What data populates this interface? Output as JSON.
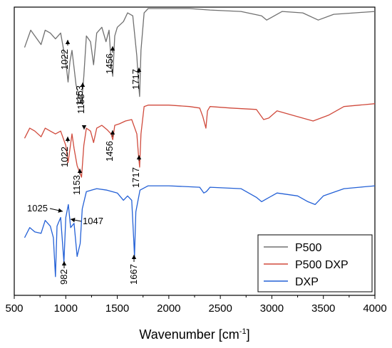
{
  "chart_data": {
    "type": "line",
    "xlabel": "Wavenumber [cm",
    "xlabel_sup": "-1",
    "xlabel_end": "]",
    "xlim": [
      500,
      4000
    ],
    "ylim": [
      0,
      1
    ],
    "xticks": [
      500,
      1000,
      1500,
      2000,
      2500,
      3000,
      3500,
      4000
    ],
    "yticks_visible": false,
    "grid": false,
    "legend_position": "bottom-right",
    "series": [
      {
        "name": "P500",
        "color": "#707070",
        "points": [
          [
            600,
            0.86
          ],
          [
            660,
            0.92
          ],
          [
            700,
            0.9
          ],
          [
            760,
            0.87
          ],
          [
            800,
            0.92
          ],
          [
            850,
            0.91
          ],
          [
            900,
            0.89
          ],
          [
            950,
            0.91
          ],
          [
            990,
            0.83
          ],
          [
            1010,
            0.78
          ],
          [
            1022,
            0.74
          ],
          [
            1040,
            0.81
          ],
          [
            1060,
            0.85
          ],
          [
            1080,
            0.79
          ],
          [
            1100,
            0.73
          ],
          [
            1130,
            0.69
          ],
          [
            1153,
            0.665
          ],
          [
            1175,
            0.76
          ],
          [
            1200,
            0.9
          ],
          [
            1240,
            0.88
          ],
          [
            1270,
            0.8
          ],
          [
            1300,
            0.91
          ],
          [
            1350,
            0.93
          ],
          [
            1390,
            0.88
          ],
          [
            1420,
            0.92
          ],
          [
            1440,
            0.81
          ],
          [
            1456,
            0.76
          ],
          [
            1475,
            0.9
          ],
          [
            1500,
            0.93
          ],
          [
            1560,
            0.95
          ],
          [
            1600,
            0.98
          ],
          [
            1650,
            0.97
          ],
          [
            1690,
            0.83
          ],
          [
            1705,
            0.74
          ],
          [
            1717,
            0.69
          ],
          [
            1730,
            0.85
          ],
          [
            1760,
            0.98
          ],
          [
            1800,
            0.995
          ],
          [
            2000,
            0.995
          ],
          [
            2200,
            0.995
          ],
          [
            2400,
            0.99
          ],
          [
            2700,
            0.985
          ],
          [
            2900,
            0.97
          ],
          [
            2950,
            0.955
          ],
          [
            3000,
            0.965
          ],
          [
            3100,
            0.985
          ],
          [
            3300,
            0.98
          ],
          [
            3450,
            0.955
          ],
          [
            3600,
            0.975
          ],
          [
            3800,
            0.98
          ],
          [
            4000,
            0.985
          ]
        ]
      },
      {
        "name": "P500 DXP",
        "color": "#d04a3c",
        "points": [
          [
            600,
            0.545
          ],
          [
            650,
            0.58
          ],
          [
            700,
            0.57
          ],
          [
            760,
            0.55
          ],
          [
            800,
            0.58
          ],
          [
            850,
            0.57
          ],
          [
            900,
            0.56
          ],
          [
            950,
            0.57
          ],
          [
            1000,
            0.52
          ],
          [
            1022,
            0.46
          ],
          [
            1045,
            0.52
          ],
          [
            1060,
            0.56
          ],
          [
            1080,
            0.51
          ],
          [
            1110,
            0.45
          ],
          [
            1153,
            0.41
          ],
          [
            1175,
            0.52
          ],
          [
            1200,
            0.58
          ],
          [
            1240,
            0.57
          ],
          [
            1270,
            0.53
          ],
          [
            1300,
            0.58
          ],
          [
            1350,
            0.59
          ],
          [
            1400,
            0.575
          ],
          [
            1440,
            0.56
          ],
          [
            1456,
            0.54
          ],
          [
            1475,
            0.59
          ],
          [
            1520,
            0.595
          ],
          [
            1580,
            0.605
          ],
          [
            1640,
            0.61
          ],
          [
            1690,
            0.56
          ],
          [
            1705,
            0.49
          ],
          [
            1717,
            0.445
          ],
          [
            1730,
            0.56
          ],
          [
            1760,
            0.655
          ],
          [
            1800,
            0.66
          ],
          [
            2000,
            0.66
          ],
          [
            2200,
            0.655
          ],
          [
            2300,
            0.65
          ],
          [
            2330,
            0.62
          ],
          [
            2360,
            0.58
          ],
          [
            2375,
            0.64
          ],
          [
            2400,
            0.655
          ],
          [
            2600,
            0.65
          ],
          [
            2850,
            0.645
          ],
          [
            2920,
            0.61
          ],
          [
            2970,
            0.615
          ],
          [
            3050,
            0.64
          ],
          [
            3200,
            0.625
          ],
          [
            3400,
            0.605
          ],
          [
            3550,
            0.625
          ],
          [
            3700,
            0.655
          ],
          [
            3850,
            0.66
          ],
          [
            4000,
            0.665
          ]
        ]
      },
      {
        "name": "DXP",
        "color": "#2360d6",
        "points": [
          [
            600,
            0.2
          ],
          [
            650,
            0.235
          ],
          [
            700,
            0.22
          ],
          [
            760,
            0.215
          ],
          [
            800,
            0.26
          ],
          [
            850,
            0.24
          ],
          [
            880,
            0.2
          ],
          [
            900,
            0.065
          ],
          [
            915,
            0.24
          ],
          [
            950,
            0.27
          ],
          [
            982,
            0.115
          ],
          [
            1000,
            0.27
          ],
          [
            1025,
            0.315
          ],
          [
            1047,
            0.235
          ],
          [
            1080,
            0.25
          ],
          [
            1110,
            0.135
          ],
          [
            1140,
            0.18
          ],
          [
            1160,
            0.3
          ],
          [
            1200,
            0.36
          ],
          [
            1300,
            0.37
          ],
          [
            1400,
            0.365
          ],
          [
            1500,
            0.355
          ],
          [
            1560,
            0.33
          ],
          [
            1600,
            0.345
          ],
          [
            1640,
            0.33
          ],
          [
            1660,
            0.19
          ],
          [
            1667,
            0.135
          ],
          [
            1680,
            0.29
          ],
          [
            1720,
            0.365
          ],
          [
            1800,
            0.38
          ],
          [
            2000,
            0.38
          ],
          [
            2300,
            0.375
          ],
          [
            2340,
            0.355
          ],
          [
            2365,
            0.36
          ],
          [
            2400,
            0.375
          ],
          [
            2700,
            0.37
          ],
          [
            2850,
            0.34
          ],
          [
            2900,
            0.325
          ],
          [
            2950,
            0.335
          ],
          [
            3050,
            0.355
          ],
          [
            3250,
            0.345
          ],
          [
            3350,
            0.325
          ],
          [
            3420,
            0.315
          ],
          [
            3500,
            0.345
          ],
          [
            3700,
            0.37
          ],
          [
            3850,
            0.375
          ],
          [
            4000,
            0.38
          ]
        ]
      }
    ],
    "annotations": [
      {
        "label": "1022",
        "series": "P500"
      },
      {
        "label": "1153",
        "series": "P500"
      },
      {
        "label": "1456",
        "series": "P500"
      },
      {
        "label": "1717",
        "series": "P500"
      },
      {
        "label": "1153",
        "series": "P500 DXP"
      },
      {
        "label": "1022",
        "series": "P500 DXP"
      },
      {
        "label": "1153",
        "series": "P500 DXP"
      },
      {
        "label": "1456",
        "series": "P500 DXP"
      },
      {
        "label": "1717",
        "series": "P500 DXP"
      },
      {
        "label": "1025",
        "series": "DXP"
      },
      {
        "label": "1047",
        "series": "DXP"
      },
      {
        "label": "982",
        "series": "DXP"
      },
      {
        "label": "1667",
        "series": "DXP"
      }
    ]
  }
}
